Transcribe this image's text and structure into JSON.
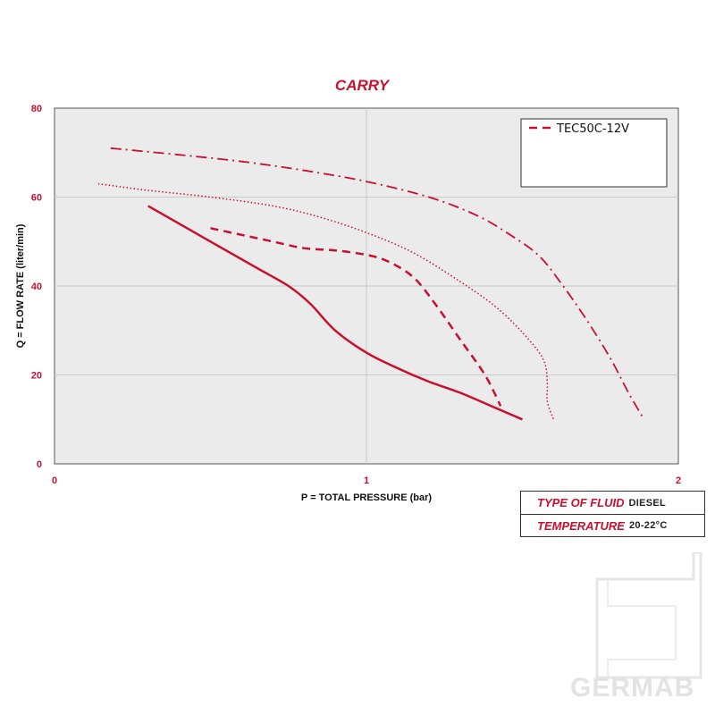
{
  "logo_text": "GERMAB",
  "info": {
    "fluid_label": "TYPE OF FLUID",
    "fluid_value": "DIESEL",
    "temp_label": "TEMPERATURE",
    "temp_value": "20-22°C"
  },
  "colors": {
    "series": "#c8102e",
    "plot_bg": "#ebebeb",
    "grid": "#c8c8c8",
    "tick_labels": "#c8102e"
  },
  "chart_data": {
    "type": "line",
    "title": "CARRY",
    "xlabel": "P = TOTAL PRESSURE (bar)",
    "ylabel": "Q = FLOW RATE (liter/min)",
    "xlim": [
      0,
      2
    ],
    "ylim": [
      0,
      80
    ],
    "xticks": [
      "0",
      "1",
      "2"
    ],
    "yticks": [
      "0",
      "20",
      "40",
      "60",
      "80"
    ],
    "grid": true,
    "legend_position": "top-right",
    "series": [
      {
        "name": "",
        "style": "solid",
        "points": [
          [
            0.3,
            58
          ],
          [
            0.5,
            50
          ],
          [
            0.65,
            44
          ],
          [
            0.75,
            40
          ],
          [
            0.82,
            36
          ],
          [
            0.9,
            30
          ],
          [
            1.0,
            25
          ],
          [
            1.1,
            21.5
          ],
          [
            1.2,
            18.5
          ],
          [
            1.3,
            16
          ],
          [
            1.4,
            13
          ],
          [
            1.5,
            10
          ]
        ]
      },
      {
        "name": "TEC50C-12V",
        "style": "dashed",
        "points": [
          [
            0.5,
            53
          ],
          [
            0.6,
            51.5
          ],
          [
            0.7,
            50
          ],
          [
            0.8,
            48.5
          ],
          [
            0.9,
            48
          ],
          [
            1.0,
            47
          ],
          [
            1.07,
            45.5
          ],
          [
            1.15,
            42
          ],
          [
            1.22,
            36
          ],
          [
            1.3,
            28
          ],
          [
            1.38,
            20
          ],
          [
            1.43,
            13
          ]
        ]
      },
      {
        "name": "",
        "style": "dotted",
        "points": [
          [
            0.14,
            63
          ],
          [
            0.3,
            61.5
          ],
          [
            0.5,
            60
          ],
          [
            0.7,
            58
          ],
          [
            0.85,
            55.5
          ],
          [
            1.0,
            52
          ],
          [
            1.15,
            47.5
          ],
          [
            1.3,
            41
          ],
          [
            1.42,
            35
          ],
          [
            1.52,
            28
          ],
          [
            1.57,
            23
          ],
          [
            1.58,
            18
          ],
          [
            1.58,
            14
          ],
          [
            1.6,
            10
          ]
        ]
      },
      {
        "name": "",
        "style": "dashdot",
        "points": [
          [
            0.18,
            71
          ],
          [
            0.4,
            69.5
          ],
          [
            0.6,
            68
          ],
          [
            0.8,
            66
          ],
          [
            1.0,
            63.5
          ],
          [
            1.2,
            60
          ],
          [
            1.35,
            56
          ],
          [
            1.45,
            52
          ],
          [
            1.55,
            47
          ],
          [
            1.62,
            41
          ],
          [
            1.7,
            33
          ],
          [
            1.78,
            24
          ],
          [
            1.84,
            16
          ],
          [
            1.89,
            10
          ]
        ]
      }
    ]
  }
}
